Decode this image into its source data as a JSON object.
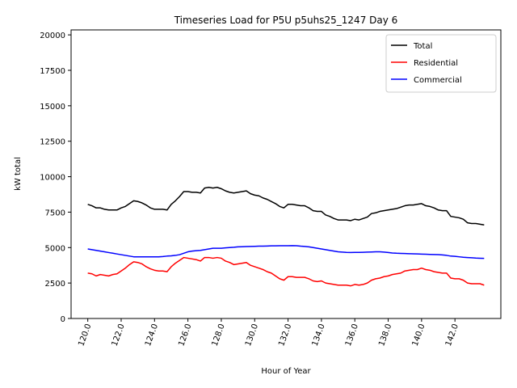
{
  "chart_data": {
    "type": "line",
    "title": "Timeseries Load for P5U p5uhs25_1247  Day 6",
    "xlabel": "Hour of Year",
    "ylabel": "kW total",
    "xlim": [
      119.0,
      144.75
    ],
    "ylim": [
      0,
      20350
    ],
    "xticks": [
      120,
      122,
      124,
      126,
      128,
      130,
      132,
      134,
      136,
      138,
      140,
      142
    ],
    "xtick_labels": [
      "120.0",
      "122.0",
      "124.0",
      "126.0",
      "128.0",
      "130.0",
      "132.0",
      "134.0",
      "136.0",
      "138.0",
      "140.0",
      "142.0"
    ],
    "yticks": [
      0,
      2500,
      5000,
      7500,
      10000,
      12500,
      15000,
      17500,
      20000
    ],
    "ytick_labels": [
      "0",
      "2500",
      "5000",
      "7500",
      "10000",
      "12500",
      "15000",
      "17500",
      "20000"
    ],
    "legend_position": "top-right",
    "x": [
      120.0,
      120.25,
      120.5,
      120.75,
      121.0,
      121.25,
      121.5,
      121.75,
      122.0,
      122.25,
      122.5,
      122.75,
      123.0,
      123.25,
      123.5,
      123.75,
      124.0,
      124.25,
      124.5,
      124.75,
      125.0,
      125.25,
      125.5,
      125.75,
      126.0,
      126.25,
      126.5,
      126.75,
      127.0,
      127.25,
      127.5,
      127.75,
      128.0,
      128.25,
      128.5,
      128.75,
      129.0,
      129.25,
      129.5,
      129.75,
      130.0,
      130.25,
      130.5,
      130.75,
      131.0,
      131.25,
      131.5,
      131.75,
      132.0,
      132.25,
      132.5,
      132.75,
      133.0,
      133.25,
      133.5,
      133.75,
      134.0,
      134.25,
      134.5,
      134.75,
      135.0,
      135.25,
      135.5,
      135.75,
      136.0,
      136.25,
      136.5,
      136.75,
      137.0,
      137.25,
      137.5,
      137.75,
      138.0,
      138.25,
      138.5,
      138.75,
      139.0,
      139.25,
      139.5,
      139.75,
      140.0,
      140.25,
      140.5,
      140.75,
      141.0,
      141.25,
      141.5,
      141.75,
      142.0,
      142.25,
      142.5,
      142.75,
      143.0,
      143.25,
      143.5,
      143.75
    ],
    "series": [
      {
        "name": "Total",
        "color": "#000000",
        "values": [
          8050,
          7950,
          7800,
          7800,
          7700,
          7650,
          7650,
          7650,
          7800,
          7900,
          8100,
          8300,
          8250,
          8150,
          8000,
          7800,
          7700,
          7700,
          7700,
          7650,
          8050,
          8300,
          8600,
          8950,
          8950,
          8900,
          8900,
          8850,
          9200,
          9250,
          9200,
          9250,
          9150,
          9000,
          8900,
          8850,
          8900,
          8950,
          9000,
          8800,
          8700,
          8650,
          8500,
          8400,
          8250,
          8100,
          7900,
          7800,
          8050,
          8050,
          8000,
          7950,
          7950,
          7800,
          7600,
          7550,
          7550,
          7300,
          7200,
          7050,
          6950,
          6950,
          6950,
          6900,
          7000,
          6950,
          7050,
          7150,
          7400,
          7450,
          7550,
          7600,
          7650,
          7700,
          7750,
          7850,
          7950,
          8000,
          8000,
          8050,
          8100,
          7950,
          7900,
          7800,
          7650,
          7600,
          7600,
          7200,
          7150,
          7100,
          7000,
          6750,
          6700,
          6700,
          6650,
          6600
        ]
      },
      {
        "name": "Residential",
        "color": "#ff0000",
        "values": [
          3200,
          3150,
          3000,
          3100,
          3050,
          3000,
          3100,
          3150,
          3350,
          3550,
          3800,
          4000,
          3950,
          3850,
          3650,
          3500,
          3400,
          3350,
          3350,
          3300,
          3650,
          3900,
          4100,
          4300,
          4250,
          4200,
          4150,
          4050,
          4300,
          4300,
          4250,
          4300,
          4250,
          4050,
          3950,
          3800,
          3850,
          3900,
          3950,
          3750,
          3650,
          3550,
          3450,
          3300,
          3200,
          3000,
          2800,
          2700,
          2950,
          2950,
          2900,
          2900,
          2900,
          2800,
          2650,
          2600,
          2650,
          2500,
          2450,
          2400,
          2350,
          2350,
          2350,
          2300,
          2400,
          2350,
          2400,
          2500,
          2700,
          2800,
          2850,
          2950,
          3000,
          3100,
          3150,
          3200,
          3350,
          3400,
          3450,
          3450,
          3550,
          3450,
          3400,
          3300,
          3250,
          3200,
          3200,
          2850,
          2800,
          2800,
          2700,
          2500,
          2450,
          2450,
          2450,
          2350
        ]
      },
      {
        "name": "Commercial",
        "color": "#0000ff",
        "values": [
          4900,
          4850,
          4800,
          4750,
          4700,
          4650,
          4600,
          4550,
          4500,
          4450,
          4400,
          4350,
          4350,
          4350,
          4350,
          4350,
          4350,
          4350,
          4370,
          4400,
          4420,
          4450,
          4500,
          4600,
          4700,
          4750,
          4780,
          4800,
          4850,
          4900,
          4950,
          4950,
          4950,
          4980,
          5000,
          5020,
          5050,
          5060,
          5070,
          5080,
          5090,
          5100,
          5100,
          5110,
          5120,
          5120,
          5130,
          5130,
          5130,
          5140,
          5130,
          5100,
          5080,
          5050,
          5000,
          4950,
          4900,
          4850,
          4800,
          4750,
          4700,
          4680,
          4660,
          4650,
          4660,
          4660,
          4670,
          4680,
          4690,
          4700,
          4700,
          4680,
          4650,
          4620,
          4600,
          4590,
          4580,
          4570,
          4560,
          4550,
          4540,
          4530,
          4520,
          4510,
          4500,
          4480,
          4450,
          4400,
          4380,
          4350,
          4320,
          4300,
          4280,
          4260,
          4250,
          4240
        ]
      }
    ]
  }
}
